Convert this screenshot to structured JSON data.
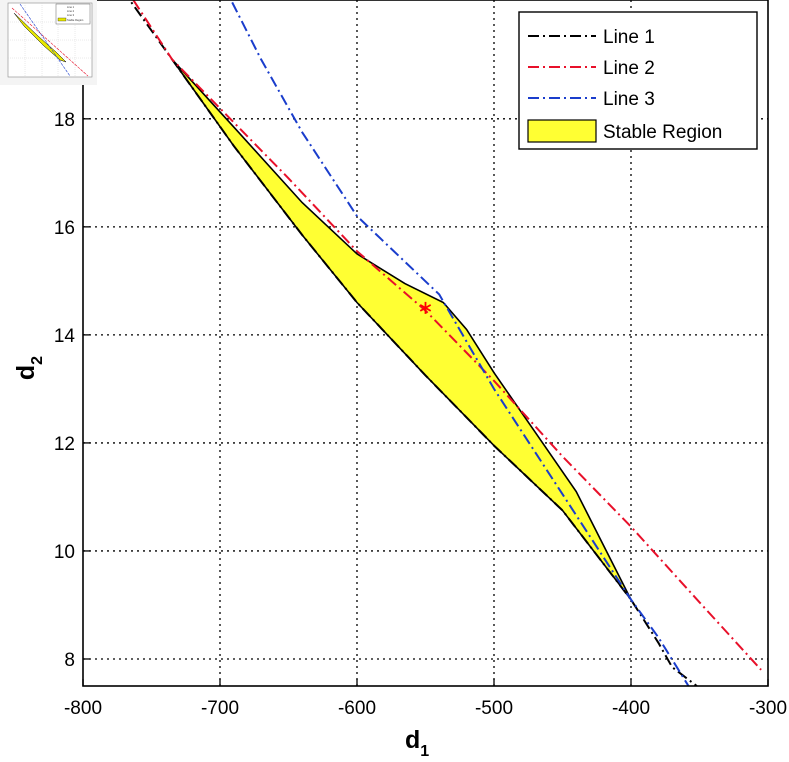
{
  "chart_data": {
    "type": "line",
    "xlabel": "d",
    "xlabel_sub": "1",
    "ylabel": "d",
    "ylabel_sub": "2",
    "xlim": [
      -800,
      -300
    ],
    "ylim": [
      7.5,
      20.2
    ],
    "xticks": [
      -800,
      -700,
      -600,
      -500,
      -400,
      -300
    ],
    "yticks": [
      8,
      10,
      12,
      14,
      16,
      18
    ],
    "x_tick_labels": [
      "-800",
      "-700",
      "-600",
      "-500",
      "-400",
      "-300"
    ],
    "y_tick_labels": [
      "8",
      "10",
      "12",
      "14",
      "16",
      "18"
    ],
    "grid": true,
    "legend_position": "top-right",
    "legend": [
      "Line 1",
      "Line 2",
      "Line 3",
      "Stable Region"
    ],
    "series": [
      {
        "name": "Line 1",
        "color": "#000000",
        "style": "dash-dot",
        "points": [
          [
            -780,
            20.7
          ],
          [
            -735,
            19.1
          ],
          [
            -690,
            17.5
          ],
          [
            -640,
            15.85
          ],
          [
            -600,
            14.6
          ],
          [
            -550,
            13.25
          ],
          [
            -500,
            11.95
          ],
          [
            -450,
            10.75
          ],
          [
            -400,
            9.1
          ],
          [
            -380,
            8.3
          ],
          [
            -370,
            7.85
          ],
          [
            -352,
            7.5
          ]
        ]
      },
      {
        "name": "Line 2",
        "color": "#e8102a",
        "style": "dash-dot",
        "points": [
          [
            -780,
            20.85
          ],
          [
            -735,
            19.1
          ],
          [
            -650,
            16.9
          ],
          [
            -600,
            15.55
          ],
          [
            -550,
            14.45
          ],
          [
            -500,
            13.15
          ],
          [
            -450,
            11.75
          ],
          [
            -400,
            10.45
          ],
          [
            -350,
            9.05
          ],
          [
            -305,
            7.8
          ]
        ]
      },
      {
        "name": "Line 3",
        "color": "#1a3dcc",
        "style": "dash-dot",
        "points": [
          [
            -705,
            20.85
          ],
          [
            -670,
            19.1
          ],
          [
            -640,
            17.75
          ],
          [
            -600,
            16.2
          ],
          [
            -540,
            14.75
          ],
          [
            -500,
            13.0
          ],
          [
            -450,
            11.05
          ],
          [
            -400,
            9.1
          ],
          [
            -380,
            8.4
          ],
          [
            -358,
            7.5
          ]
        ]
      },
      {
        "name": "Stable Region",
        "color": "#ffff33",
        "style": "filled-region",
        "points": [
          [
            -735,
            19.1
          ],
          [
            -690,
            17.85
          ],
          [
            -640,
            16.45
          ],
          [
            -600,
            15.5
          ],
          [
            -565,
            14.95
          ],
          [
            -537,
            14.6
          ],
          [
            -520,
            14.1
          ],
          [
            -500,
            13.3
          ],
          [
            -470,
            12.2
          ],
          [
            -440,
            11.1
          ],
          [
            -400,
            9.1
          ],
          [
            -450,
            10.75
          ],
          [
            -500,
            11.95
          ],
          [
            -550,
            13.25
          ],
          [
            -600,
            14.6
          ],
          [
            -640,
            15.85
          ],
          [
            -690,
            17.5
          ]
        ]
      }
    ],
    "marker": {
      "x": -550,
      "y": 14.5,
      "symbol": "*",
      "color": "#ff0000"
    }
  },
  "thumbnail": {
    "legend": [
      "Line 1",
      "Line 2",
      "Line 3",
      "Stable Region"
    ]
  }
}
